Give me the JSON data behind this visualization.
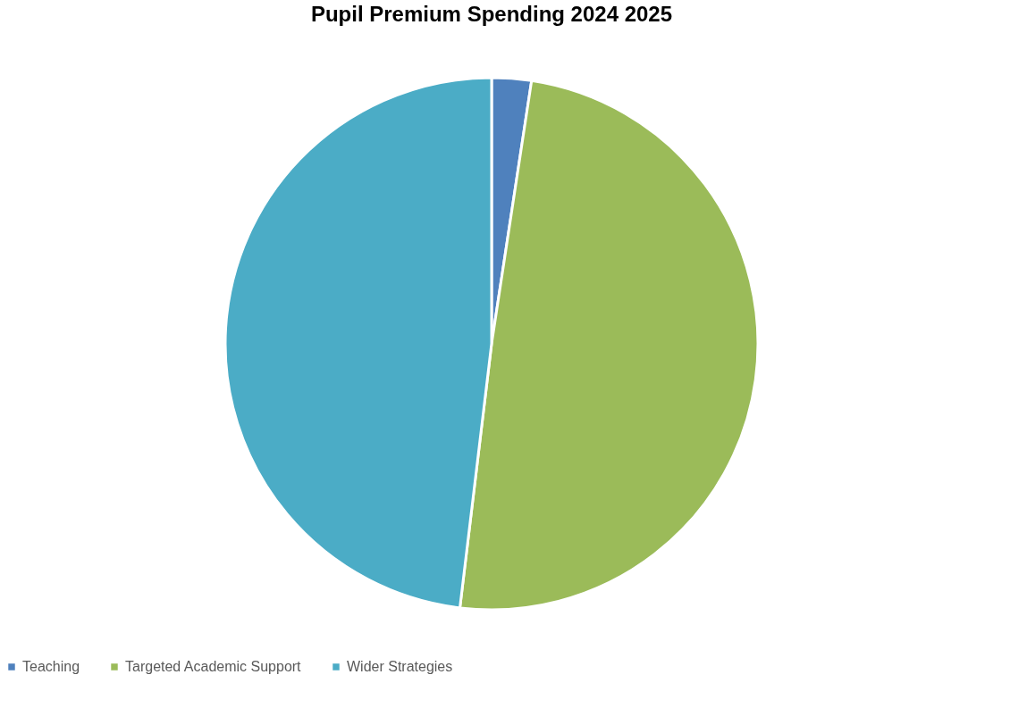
{
  "chart_data": {
    "type": "pie",
    "title": "Pupil Premium Spending 2024 2025",
    "categories": [
      "Teaching",
      "Targeted Academic Support",
      "Wider Strategies"
    ],
    "values": [
      2.4,
      49.5,
      48.1
    ],
    "colors": [
      "#4f81bd",
      "#9bbb59",
      "#4bacc6"
    ],
    "legend": "bottom"
  }
}
